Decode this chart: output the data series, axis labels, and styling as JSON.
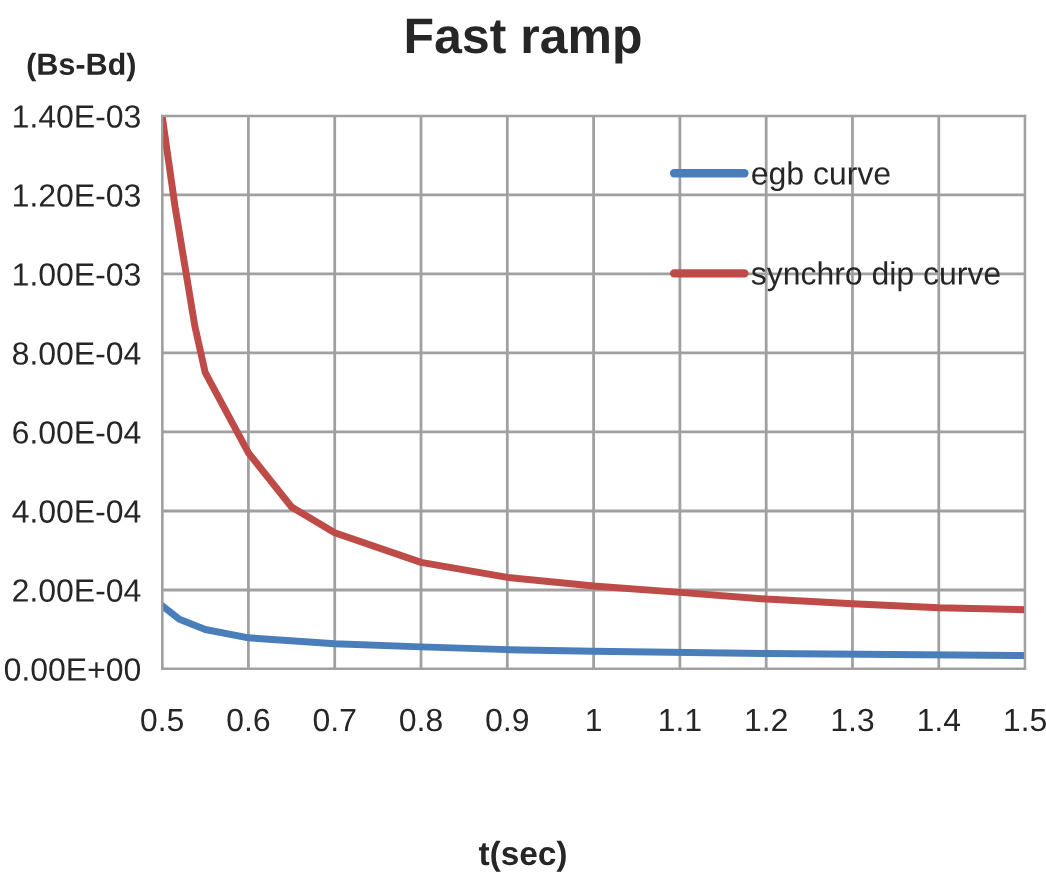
{
  "chart_data": {
    "type": "line",
    "title": "Fast ramp",
    "xlabel": "t(sec)",
    "ylabel": "(Bs-Bd)",
    "series": [
      {
        "name": "egb curve",
        "color": "#4a7ebb",
        "x": [
          0.5,
          0.52,
          0.55,
          0.6,
          0.7,
          0.8,
          0.9,
          1.0,
          1.2,
          1.5
        ],
        "values": [
          0.00016,
          0.000126,
          0.0001,
          7.9e-05,
          6.4e-05,
          5.6e-05,
          4.9e-05,
          4.5e-05,
          3.9e-05,
          3.4e-05
        ]
      },
      {
        "name": "synchro dip curve",
        "color": "#be4b48",
        "x": [
          0.5,
          0.515,
          0.538,
          0.55,
          0.6,
          0.65,
          0.7,
          0.8,
          0.9,
          1.0,
          1.1,
          1.2,
          1.3,
          1.4,
          1.5
        ],
        "values": [
          0.0014,
          0.00117,
          0.000867,
          0.00075,
          0.000547,
          0.00041,
          0.000345,
          0.00027,
          0.000232,
          0.00021,
          0.000194,
          0.000177,
          0.000165,
          0.000155,
          0.00015
        ]
      }
    ],
    "xlim": [
      0.5,
      1.5
    ],
    "xticks": [
      0.5,
      0.6,
      0.7,
      0.8,
      0.9,
      1,
      1.1,
      1.2,
      1.3,
      1.4,
      1.5
    ],
    "ylim": [
      0,
      0.0014
    ],
    "yticks": [
      {
        "value": 0,
        "label": "0.00E+00"
      },
      {
        "value": 0.0002,
        "label": "2.00E-04"
      },
      {
        "value": 0.0004,
        "label": "4.00E-04"
      },
      {
        "value": 0.0006,
        "label": "6.00E-04"
      },
      {
        "value": 0.0008,
        "label": "8.00E-04"
      },
      {
        "value": 0.001,
        "label": "1.00E-03"
      },
      {
        "value": 0.0012,
        "label": "1.20E-03"
      },
      {
        "value": 0.0014,
        "label": "1.40E-03"
      }
    ],
    "grid": true,
    "legend": "top right",
    "marker": "none",
    "line_style": "solid"
  }
}
